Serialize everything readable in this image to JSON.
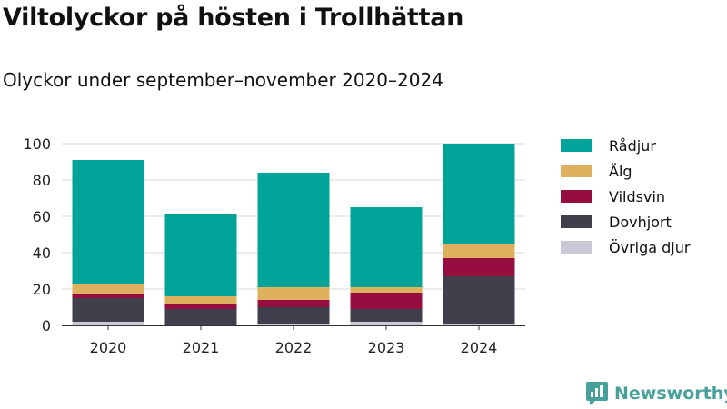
{
  "header": {
    "title": "Viltolyckor på hösten i Trollhättan",
    "subtitle": "Olyckor under september–november 2020–2024"
  },
  "brand": {
    "label": "Newsworthy",
    "icon": "newsworthy-logo-icon",
    "color": "#47a09a"
  },
  "chart_data": {
    "type": "bar",
    "stacked": true,
    "categories": [
      "2020",
      "2021",
      "2022",
      "2023",
      "2024"
    ],
    "series": [
      {
        "name": "Övriga djur",
        "color": "#cbc8d5",
        "values": [
          2,
          0,
          1,
          2,
          1
        ]
      },
      {
        "name": "Dovhjort",
        "color": "#403f4c",
        "values": [
          13,
          9,
          9,
          7,
          26
        ]
      },
      {
        "name": "Vildsvin",
        "color": "#960d3f",
        "values": [
          2,
          3,
          4,
          9,
          10
        ]
      },
      {
        "name": "Älg",
        "color": "#ddb15d",
        "values": [
          6,
          4,
          7,
          3,
          8
        ]
      },
      {
        "name": "Rådjur",
        "color": "#00a398",
        "values": [
          68,
          45,
          63,
          44,
          55
        ]
      }
    ],
    "legend_order": [
      "Rådjur",
      "Älg",
      "Vildsvin",
      "Dovhjort",
      "Övriga djur"
    ],
    "yticks": [
      "0",
      "20",
      "40",
      "60",
      "80",
      "100"
    ],
    "ylim": [
      0,
      100
    ],
    "grid": true,
    "legend_position": "right"
  }
}
